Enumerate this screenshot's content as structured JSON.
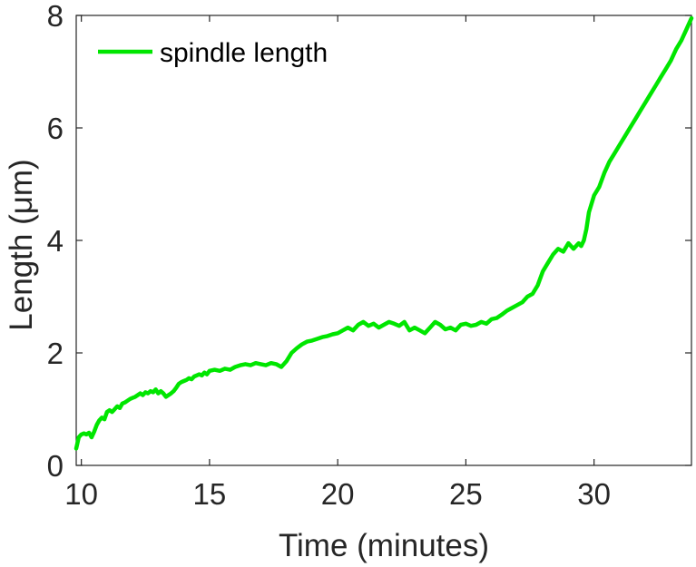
{
  "chart_data": {
    "type": "line",
    "xlabel": "Time (minutes)",
    "ylabel": "Length (μm)",
    "xlim": [
      9.8,
      33.8
    ],
    "ylim": [
      0,
      8
    ],
    "xticks": [
      10,
      15,
      20,
      25,
      30
    ],
    "yticks": [
      0,
      2,
      4,
      6,
      8
    ],
    "grid": false,
    "legend_location": "top-left",
    "colors": {
      "series": "#00e600",
      "axis": "#262626"
    },
    "series": [
      {
        "name": "spindle length",
        "x": [
          9.8,
          9.9,
          10.0,
          10.1,
          10.2,
          10.3,
          10.4,
          10.5,
          10.6,
          10.7,
          10.8,
          10.9,
          11.0,
          11.1,
          11.2,
          11.3,
          11.4,
          11.5,
          11.6,
          11.7,
          11.8,
          11.9,
          12.0,
          12.1,
          12.2,
          12.3,
          12.4,
          12.5,
          12.6,
          12.7,
          12.8,
          12.9,
          13.0,
          13.1,
          13.2,
          13.3,
          13.4,
          13.5,
          13.6,
          13.7,
          13.8,
          13.9,
          14.0,
          14.1,
          14.2,
          14.3,
          14.4,
          14.5,
          14.6,
          14.7,
          14.8,
          14.9,
          15.0,
          15.2,
          15.4,
          15.6,
          15.8,
          16.0,
          16.2,
          16.4,
          16.6,
          16.8,
          17.0,
          17.2,
          17.4,
          17.6,
          17.8,
          18.0,
          18.2,
          18.4,
          18.6,
          18.8,
          19.0,
          19.2,
          19.4,
          19.6,
          19.8,
          20.0,
          20.2,
          20.4,
          20.6,
          20.8,
          21.0,
          21.2,
          21.4,
          21.6,
          21.8,
          22.0,
          22.2,
          22.4,
          22.6,
          22.8,
          23.0,
          23.2,
          23.4,
          23.6,
          23.8,
          24.0,
          24.2,
          24.4,
          24.6,
          24.8,
          25.0,
          25.2,
          25.4,
          25.6,
          25.8,
          26.0,
          26.2,
          26.4,
          26.6,
          26.8,
          27.0,
          27.2,
          27.4,
          27.6,
          27.8,
          28.0,
          28.2,
          28.4,
          28.6,
          28.8,
          29.0,
          29.2,
          29.4,
          29.5,
          29.6,
          29.7,
          29.8,
          30.0,
          30.2,
          30.4,
          30.6,
          30.8,
          31.0,
          31.2,
          31.4,
          31.6,
          31.8,
          32.0,
          32.2,
          32.4,
          32.6,
          32.8,
          33.0,
          33.2,
          33.4,
          33.6,
          33.8
        ],
        "y": [
          0.3,
          0.5,
          0.55,
          0.57,
          0.55,
          0.58,
          0.5,
          0.6,
          0.72,
          0.8,
          0.85,
          0.82,
          0.95,
          0.98,
          0.95,
          1.0,
          1.05,
          1.02,
          1.1,
          1.12,
          1.15,
          1.18,
          1.2,
          1.22,
          1.25,
          1.28,
          1.25,
          1.3,
          1.28,
          1.32,
          1.3,
          1.35,
          1.28,
          1.32,
          1.28,
          1.22,
          1.25,
          1.28,
          1.32,
          1.38,
          1.45,
          1.48,
          1.5,
          1.52,
          1.55,
          1.53,
          1.58,
          1.6,
          1.62,
          1.6,
          1.65,
          1.62,
          1.68,
          1.7,
          1.68,
          1.72,
          1.7,
          1.75,
          1.78,
          1.8,
          1.78,
          1.82,
          1.8,
          1.78,
          1.82,
          1.8,
          1.75,
          1.85,
          2.0,
          2.08,
          2.15,
          2.2,
          2.22,
          2.25,
          2.28,
          2.3,
          2.33,
          2.35,
          2.4,
          2.45,
          2.4,
          2.5,
          2.55,
          2.48,
          2.52,
          2.45,
          2.5,
          2.55,
          2.52,
          2.48,
          2.55,
          2.4,
          2.45,
          2.4,
          2.35,
          2.45,
          2.55,
          2.5,
          2.42,
          2.45,
          2.4,
          2.5,
          2.52,
          2.48,
          2.5,
          2.55,
          2.52,
          2.6,
          2.62,
          2.68,
          2.75,
          2.8,
          2.85,
          2.9,
          3.0,
          3.05,
          3.2,
          3.45,
          3.6,
          3.75,
          3.85,
          3.8,
          3.95,
          3.85,
          3.95,
          3.9,
          4.0,
          4.2,
          4.5,
          4.8,
          4.95,
          5.2,
          5.4,
          5.55,
          5.7,
          5.85,
          6.0,
          6.15,
          6.3,
          6.45,
          6.6,
          6.75,
          6.9,
          7.05,
          7.2,
          7.4,
          7.55,
          7.75,
          7.95
        ]
      }
    ]
  }
}
